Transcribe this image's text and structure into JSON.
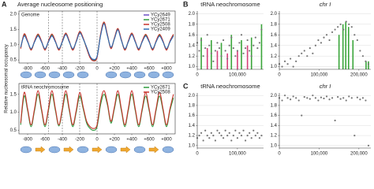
{
  "chart_data": [
    {
      "type": "line",
      "panel_label": "A",
      "title": "Average nucleosome positioning",
      "subtitle": "Genome",
      "ylabel": "Relative nucleosomal occupancy",
      "x": [
        -880,
        -840,
        -800,
        -760,
        -720,
        -680,
        -640,
        -600,
        -560,
        -520,
        -480,
        -440,
        -400,
        -360,
        -320,
        -280,
        -240,
        -200,
        -160,
        -120,
        -80,
        -40,
        0,
        40,
        80,
        120,
        160,
        200,
        240,
        280,
        320,
        360,
        400,
        440,
        480,
        520,
        560,
        600,
        640,
        680,
        720,
        760,
        800,
        840,
        880
      ],
      "series": [
        {
          "name": "YCy2649",
          "color": "#6a4fc4",
          "values": [
            0.9,
            1.3,
            1.1,
            0.85,
            1.1,
            1.3,
            1.1,
            0.85,
            1.1,
            1.3,
            1.1,
            0.85,
            1.1,
            1.35,
            1.1,
            0.85,
            1.1,
            1.4,
            1.2,
            0.9,
            0.6,
            0.5,
            0.6,
            1.3,
            1.7,
            1.3,
            0.9,
            1.2,
            1.5,
            1.15,
            0.85,
            1.1,
            1.35,
            1.1,
            0.85,
            1.1,
            1.3,
            1.1,
            0.85,
            1.1,
            1.3,
            1.1,
            0.85,
            1.1,
            1.3
          ]
        },
        {
          "name": "YCy2671",
          "color": "#2e9a3e",
          "values": [
            0.88,
            1.33,
            1.1,
            0.83,
            1.1,
            1.33,
            1.1,
            0.83,
            1.1,
            1.33,
            1.1,
            0.83,
            1.1,
            1.37,
            1.1,
            0.83,
            1.1,
            1.42,
            1.2,
            0.88,
            0.58,
            0.48,
            0.6,
            1.32,
            1.72,
            1.3,
            0.88,
            1.2,
            1.52,
            1.15,
            0.83,
            1.1,
            1.37,
            1.1,
            0.83,
            1.1,
            1.32,
            1.1,
            0.83,
            1.1,
            1.32,
            1.1,
            0.83,
            1.1,
            1.32
          ]
        },
        {
          "name": "YCy2508",
          "color": "#c8322b",
          "values": [
            0.87,
            1.35,
            1.12,
            0.82,
            1.12,
            1.35,
            1.12,
            0.82,
            1.12,
            1.35,
            1.12,
            0.82,
            1.12,
            1.38,
            1.12,
            0.82,
            1.12,
            1.43,
            1.22,
            0.88,
            0.57,
            0.47,
            0.58,
            1.33,
            1.74,
            1.32,
            0.87,
            1.22,
            1.53,
            1.17,
            0.82,
            1.12,
            1.38,
            1.12,
            0.82,
            1.12,
            1.34,
            1.12,
            0.82,
            1.12,
            1.34,
            1.12,
            0.82,
            1.12,
            1.34
          ]
        },
        {
          "name": "YCy2409",
          "color": "#2f6db5",
          "values": [
            0.92,
            1.28,
            1.09,
            0.87,
            1.09,
            1.28,
            1.09,
            0.87,
            1.09,
            1.28,
            1.09,
            0.87,
            1.09,
            1.33,
            1.09,
            0.87,
            1.09,
            1.38,
            1.19,
            0.92,
            0.62,
            0.52,
            0.62,
            1.28,
            1.68,
            1.28,
            0.92,
            1.19,
            1.48,
            1.14,
            0.87,
            1.09,
            1.33,
            1.09,
            0.87,
            1.09,
            1.28,
            1.09,
            0.87,
            1.09,
            1.28,
            1.09,
            0.87,
            1.09,
            1.28
          ]
        }
      ],
      "xlim": [
        -900,
        900
      ],
      "xticks": [
        -800,
        -600,
        -400,
        -200,
        0,
        {
          "value": 200,
          "label": "+200"
        },
        {
          "value": 400,
          "label": "+400"
        },
        {
          "value": 600,
          "label": "+600"
        },
        {
          "value": 800,
          "label": "+800"
        }
      ],
      "ylim": [
        0.4,
        2.1
      ],
      "yticks": [
        0.5,
        {
          "value": 1,
          "label": "1.0"
        },
        1.5,
        {
          "value": 2,
          "label": "2.0"
        }
      ],
      "reference_lines": [
        -560,
        -400,
        -200,
        0
      ]
    },
    {
      "type": "line",
      "subtitle": "tRNA neochromosome",
      "x": [
        -880,
        -840,
        -800,
        -760,
        -720,
        -680,
        -640,
        -600,
        -560,
        -520,
        -480,
        -440,
        -400,
        -360,
        -320,
        -280,
        -240,
        -200,
        -160,
        -120,
        -80,
        -40,
        0,
        40,
        80,
        120,
        160,
        200,
        240,
        280,
        320,
        360,
        400,
        440,
        480,
        520,
        560,
        600,
        640,
        680,
        720,
        760,
        800,
        840,
        880
      ],
      "series": [
        {
          "name": "YCy2671",
          "color": "#2e9a3e",
          "values": [
            0.65,
            1.45,
            1.05,
            0.6,
            1.05,
            1.5,
            1.05,
            0.6,
            1.05,
            1.5,
            1.05,
            0.62,
            1.05,
            1.5,
            1.05,
            0.6,
            1.0,
            1.45,
            1.1,
            0.7,
            0.55,
            0.5,
            0.6,
            1.2,
            1.5,
            1.2,
            0.7,
            1.1,
            1.5,
            1.05,
            0.6,
            1.05,
            1.5,
            1.05,
            0.6,
            1.05,
            1.45,
            1.05,
            0.6,
            1.05,
            1.45,
            1.05,
            0.6,
            1.05,
            1.4
          ]
        },
        {
          "name": "YCy2508",
          "color": "#c8322b",
          "values": [
            0.7,
            1.55,
            1.1,
            0.65,
            1.1,
            1.6,
            1.1,
            0.65,
            1.1,
            1.6,
            1.1,
            0.65,
            1.1,
            1.6,
            1.1,
            0.65,
            1.05,
            1.55,
            1.15,
            0.75,
            0.6,
            0.55,
            0.65,
            1.3,
            1.6,
            1.25,
            0.75,
            1.15,
            1.6,
            1.1,
            0.65,
            1.1,
            1.6,
            1.1,
            0.65,
            1.1,
            1.55,
            1.1,
            0.65,
            1.1,
            1.55,
            1.1,
            0.65,
            1.1,
            1.5
          ]
        }
      ],
      "xlim": [
        -900,
        900
      ],
      "xticks": [
        -800,
        -600,
        -400,
        -200,
        0,
        {
          "value": 200,
          "label": "+200"
        },
        {
          "value": 400,
          "label": "+400"
        },
        {
          "value": 600,
          "label": "+600"
        },
        {
          "value": 800,
          "label": "+800"
        }
      ],
      "ylim": [
        0.4,
        1.8
      ],
      "yticks": [
        0.5,
        {
          "value": 1,
          "label": "1.0"
        },
        1.5
      ],
      "reference_lines": [
        -560,
        -400,
        -200,
        0
      ]
    },
    {
      "type": "scatter",
      "panel_label": "B",
      "title": "tRNA neochromosome",
      "color": "#777777",
      "x": [
        0,
        5000,
        10000,
        15000,
        20000,
        25000,
        30000,
        35000,
        40000,
        45000,
        50000,
        55000,
        60000,
        65000,
        70000,
        75000,
        80000,
        85000,
        90000,
        95000,
        100000,
        105000,
        110000,
        115000,
        120000,
        125000,
        130000,
        135000,
        140000,
        145000,
        150000,
        155000,
        160000
      ],
      "values": [
        1.45,
        1.3,
        1.5,
        1.2,
        1.35,
        1.6,
        1.4,
        1.25,
        1.1,
        1.3,
        1.45,
        1.35,
        1.2,
        1.5,
        1.3,
        1.15,
        1.4,
        1.55,
        1.35,
        1.2,
        1.3,
        1.45,
        1.6,
        1.25,
        1.35,
        1.5,
        1.3,
        1.2,
        1.4,
        1.55,
        1.35,
        1.45,
        1.7
      ],
      "bars": [
        {
          "color": "#3aa53a",
          "x": [
            10000,
            35000,
            60000,
            85000,
            110000,
            135000,
            160000
          ],
          "values": [
            1.55,
            1.5,
            1.45,
            1.6,
            1.5,
            1.55,
            1.8
          ]
        },
        {
          "color": "#d6417a",
          "x": [
            25000,
            50000,
            75000,
            100000,
            125000
          ],
          "values": [
            1.35,
            1.3,
            1.25,
            1.3,
            1.4
          ]
        }
      ],
      "xlim": [
        0,
        165000
      ],
      "xticks": [
        0,
        {
          "value": 100000,
          "label": "100,000"
        }
      ],
      "ylim": [
        0.95,
        2.05
      ],
      "yticks": [
        {
          "value": 1,
          "label": "1.0"
        },
        1.2,
        1.4,
        1.6,
        1.8,
        {
          "value": 2,
          "label": "2.0"
        }
      ],
      "grid": true
    },
    {
      "type": "scatter",
      "title": "chr I",
      "color": "#777777",
      "x": [
        0,
        7000,
        14000,
        21000,
        28000,
        35000,
        42000,
        49000,
        56000,
        63000,
        70000,
        77000,
        84000,
        91000,
        98000,
        105000,
        112000,
        119000,
        126000,
        133000,
        140000,
        147000,
        154000,
        161000,
        168000,
        175000,
        182000,
        189000,
        196000,
        203000,
        210000,
        217000,
        224000
      ],
      "values": [
        1.05,
        1.0,
        1.1,
        1.05,
        1.15,
        1.0,
        1.1,
        1.2,
        1.25,
        1.3,
        1.2,
        1.35,
        1.25,
        1.4,
        1.5,
        1.45,
        1.55,
        1.6,
        1.5,
        1.65,
        1.7,
        1.75,
        1.8,
        1.7,
        1.85,
        1.8,
        1.75,
        1.6,
        1.5,
        1.3,
        1.2,
        1.1,
        1.05
      ],
      "bars": [
        {
          "color": "#3aa53a",
          "x": [
            150000,
            160000,
            167000,
            174000,
            185000,
            218000,
            224000
          ],
          "values": [
            1.6,
            1.8,
            1.85,
            1.75,
            1.5,
            1.1,
            1.1
          ]
        }
      ],
      "xlim": [
        0,
        230000
      ],
      "xticks": [
        0,
        {
          "value": 100000,
          "label": "100,000"
        },
        {
          "value": 200000,
          "label": "200,000"
        }
      ],
      "ylim": [
        0.95,
        2.05
      ],
      "yticks": [
        {
          "value": 1,
          "label": "1.0"
        },
        1.2,
        1.4,
        1.6,
        1.8,
        {
          "value": 2,
          "label": "2.0"
        }
      ],
      "grid": true
    },
    {
      "type": "scatter",
      "panel_label": "C",
      "title": "tRNA neochromosome",
      "color": "#777777",
      "x": [
        0,
        5000,
        10000,
        15000,
        20000,
        25000,
        30000,
        35000,
        40000,
        45000,
        50000,
        55000,
        60000,
        65000,
        70000,
        75000,
        80000,
        85000,
        90000,
        95000,
        100000,
        105000,
        110000,
        115000,
        120000,
        125000,
        130000,
        135000,
        140000,
        145000,
        150000,
        155000,
        160000
      ],
      "values": [
        1.15,
        1.2,
        1.25,
        1.1,
        1.3,
        1.2,
        1.15,
        1.25,
        1.2,
        1.1,
        1.3,
        1.25,
        1.2,
        1.15,
        1.3,
        1.2,
        1.25,
        1.1,
        1.2,
        1.3,
        1.15,
        1.25,
        1.2,
        1.3,
        1.1,
        1.2,
        1.25,
        1.15,
        1.3,
        1.2,
        1.25,
        1.15,
        1.2
      ],
      "xlim": [
        0,
        165000
      ],
      "xticks": [
        0,
        {
          "value": 100000,
          "label": "100,000"
        }
      ],
      "ylim": [
        0.95,
        2.05
      ],
      "yticks": [
        {
          "value": 1,
          "label": "1.0"
        },
        1.2,
        1.4,
        1.6,
        1.8,
        {
          "value": 2,
          "label": "2.0"
        }
      ],
      "grid": true
    },
    {
      "type": "scatter",
      "title": "chr I",
      "color": "#777777",
      "x": [
        0,
        7000,
        14000,
        21000,
        28000,
        35000,
        42000,
        49000,
        56000,
        63000,
        70000,
        77000,
        84000,
        91000,
        98000,
        105000,
        112000,
        119000,
        126000,
        133000,
        140000,
        147000,
        154000,
        161000,
        168000,
        175000,
        182000,
        189000,
        196000,
        203000,
        210000,
        217000,
        224000
      ],
      "values": [
        1.95,
        1.9,
        2.0,
        1.95,
        1.92,
        1.98,
        1.95,
        1.9,
        1.6,
        1.97,
        1.95,
        1.93,
        2.0,
        1.95,
        1.9,
        1.96,
        1.94,
        1.98,
        1.92,
        1.95,
        1.5,
        1.97,
        1.93,
        1.95,
        1.9,
        1.98,
        1.95,
        1.2,
        1.96,
        1.92,
        1.95,
        1.9,
        1.0
      ],
      "xlim": [
        0,
        230000
      ],
      "xticks": [
        0,
        {
          "value": 100000,
          "label": "100,000"
        },
        {
          "value": 200000,
          "label": "200,000"
        }
      ],
      "ylim": [
        0.95,
        2.05
      ],
      "yticks": [
        {
          "value": 1,
          "label": "1.0"
        },
        1.2,
        1.4,
        1.6,
        1.8,
        {
          "value": 2,
          "label": "2.0"
        }
      ],
      "grid": true
    }
  ]
}
